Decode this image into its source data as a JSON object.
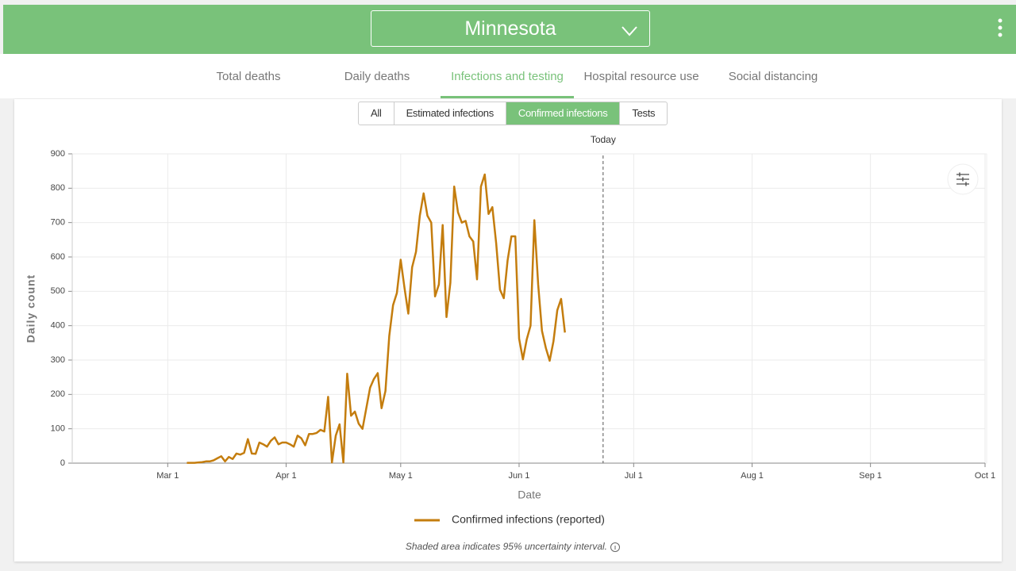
{
  "header": {
    "title": "Minnesota"
  },
  "tabs": [
    "Total deaths",
    "Daily deaths",
    "Infections and testing",
    "Hospital resource use",
    "Social distancing"
  ],
  "active_tab": 2,
  "buttons": [
    "All",
    "Estimated infections",
    "Confirmed infections",
    "Tests"
  ],
  "active_button": 2,
  "chart_data": {
    "type": "line",
    "x_label": "Date",
    "y_label": "Daily count",
    "x": [
      "Mar 6",
      "Mar 7",
      "Mar 8",
      "Mar 9",
      "Mar 10",
      "Mar 11",
      "Mar 12",
      "Mar 13",
      "Mar 14",
      "Mar 15",
      "Mar 16",
      "Mar 17",
      "Mar 18",
      "Mar 19",
      "Mar 20",
      "Mar 21",
      "Mar 22",
      "Mar 23",
      "Mar 24",
      "Mar 25",
      "Mar 26",
      "Mar 27",
      "Mar 28",
      "Mar 29",
      "Mar 30",
      "Mar 31",
      "Apr 1",
      "Apr 2",
      "Apr 3",
      "Apr 4",
      "Apr 5",
      "Apr 6",
      "Apr 7",
      "Apr 8",
      "Apr 9",
      "Apr 10",
      "Apr 11",
      "Apr 12",
      "Apr 13",
      "Apr 14",
      "Apr 15",
      "Apr 16",
      "Apr 17",
      "Apr 18",
      "Apr 19",
      "Apr 20",
      "Apr 21",
      "Apr 22",
      "Apr 23",
      "Apr 24",
      "Apr 25",
      "Apr 26",
      "Apr 27",
      "Apr 28",
      "Apr 29",
      "Apr 30",
      "May 1",
      "May 2",
      "May 3",
      "May 4",
      "May 5",
      "May 6",
      "May 7",
      "May 8",
      "May 9",
      "May 10",
      "May 11",
      "May 12",
      "May 13",
      "May 14",
      "May 15",
      "May 16",
      "May 17",
      "May 18",
      "May 19",
      "May 20",
      "May 21",
      "May 22",
      "May 23",
      "May 24",
      "May 25",
      "May 26",
      "May 27",
      "May 28",
      "May 29",
      "May 30",
      "May 31",
      "Jun 1",
      "Jun 2",
      "Jun 3",
      "Jun 4",
      "Jun 5",
      "Jun 6",
      "Jun 7",
      "Jun 8",
      "Jun 9",
      "Jun 10",
      "Jun 11",
      "Jun 12",
      "Jun 13"
    ],
    "series": [
      {
        "name": "Confirmed infections (reported)",
        "color": "#c47d0e",
        "values": [
          1,
          1,
          1,
          2,
          3,
          5,
          5,
          8,
          14,
          20,
          5,
          18,
          12,
          28,
          25,
          30,
          70,
          28,
          27,
          60,
          55,
          48,
          65,
          75,
          55,
          60,
          60,
          55,
          48,
          80,
          72,
          52,
          85,
          85,
          88,
          97,
          92,
          193,
          2,
          80,
          113,
          2,
          260,
          138,
          150,
          115,
          100,
          160,
          220,
          245,
          262,
          160,
          210,
          370,
          460,
          495,
          592,
          510,
          435,
          570,
          615,
          720,
          785,
          720,
          700,
          485,
          520,
          693,
          425,
          525,
          805,
          730,
          700,
          705,
          660,
          645,
          535,
          805,
          840,
          725,
          745,
          640,
          505,
          480,
          590,
          660,
          660,
          362,
          302,
          360,
          400,
          707,
          520,
          385,
          335,
          298,
          355,
          445,
          478,
          380
        ]
      }
    ],
    "xlim": [
      "Feb 4",
      "Oct 1"
    ],
    "xticks": [
      "Mar 1",
      "Apr 1",
      "May 1",
      "Jun 1",
      "Jul 1",
      "Aug 1",
      "Sep 1",
      "Oct 1"
    ],
    "ylim": [
      0,
      900
    ],
    "yticks": [
      0,
      100,
      200,
      300,
      400,
      500,
      600,
      700,
      800,
      900
    ],
    "grid": true,
    "annotations": [
      {
        "label": "Today",
        "x": "Jun 23"
      }
    ],
    "note": "Shaded area indicates 95% uncertainty interval."
  }
}
